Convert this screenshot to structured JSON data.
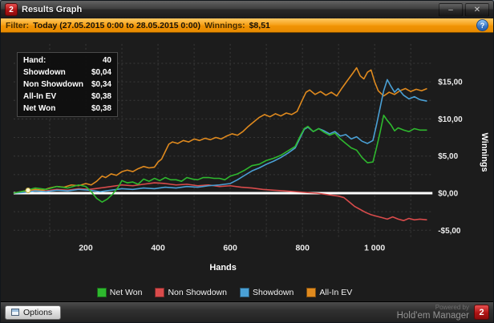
{
  "window": {
    "title": "Results Graph",
    "logo": "2",
    "minimize_glyph": "–",
    "close_glyph": "✕"
  },
  "filter_bar": {
    "filter_label": "Filter:",
    "filter_value": "Today (27.05.2015 0:00 to 28.05.2015 0:00)",
    "winnings_label": "Winnings:",
    "winnings_value": "$8,51",
    "help_glyph": "?"
  },
  "tooltip": {
    "rows": [
      {
        "label": "Hand:",
        "value": "40"
      },
      {
        "label": "Showdown",
        "value": "$0,04"
      },
      {
        "label": "Non Showdown",
        "value": "$0,34"
      },
      {
        "label": "All-In EV",
        "value": "$0,38"
      },
      {
        "label": "Net Won",
        "value": "$0,38"
      }
    ]
  },
  "chart_data": {
    "type": "line",
    "title": "",
    "xlabel": "Hands",
    "ylabel": "Winnings",
    "xlim": [
      0,
      1160
    ],
    "ylim": [
      -6.1,
      20.1
    ],
    "legend_position": "bottom",
    "grid": {
      "h_values": [
        -5,
        -2.5,
        0,
        2.5,
        5,
        7.5,
        10,
        12.5,
        15,
        17.5
      ],
      "v_values": [
        100,
        200,
        300,
        400,
        500,
        600,
        700,
        800,
        900,
        1000,
        1100
      ]
    },
    "x_ticks": [
      {
        "value": 200,
        "label": "200"
      },
      {
        "value": 400,
        "label": "400"
      },
      {
        "value": 600,
        "label": "600"
      },
      {
        "value": 800,
        "label": "800"
      },
      {
        "value": 1000,
        "label": "1 000"
      }
    ],
    "y_ticks": [
      {
        "value": 15,
        "label": "$15,00"
      },
      {
        "value": 10,
        "label": "$10,00"
      },
      {
        "value": 5,
        "label": "$5,00"
      },
      {
        "value": 0,
        "label": "$0,00"
      },
      {
        "value": -5,
        "label": "-$5,00"
      }
    ],
    "zero_line_color": "#ffffff",
    "marker": {
      "hand": 40,
      "value": 0.38
    },
    "series": [
      {
        "name": "Net Won",
        "color": "#2eb82e",
        "points": [
          [
            0,
            0
          ],
          [
            30,
            0.3
          ],
          [
            60,
            0.7
          ],
          [
            90,
            0.5
          ],
          [
            120,
            0.9
          ],
          [
            150,
            0.7
          ],
          [
            180,
            1.1
          ],
          [
            200,
            0.9
          ],
          [
            215,
            0.2
          ],
          [
            230,
            -0.7
          ],
          [
            245,
            -1.2
          ],
          [
            260,
            -0.8
          ],
          [
            275,
            -0.1
          ],
          [
            290,
            0.8
          ],
          [
            300,
            1.7
          ],
          [
            315,
            1.4
          ],
          [
            330,
            1.5
          ],
          [
            345,
            1.2
          ],
          [
            360,
            1.9
          ],
          [
            375,
            1.6
          ],
          [
            390,
            2.0
          ],
          [
            405,
            1.7
          ],
          [
            420,
            2.1
          ],
          [
            435,
            1.8
          ],
          [
            450,
            1.8
          ],
          [
            465,
            1.6
          ],
          [
            480,
            2.1
          ],
          [
            495,
            1.9
          ],
          [
            510,
            1.8
          ],
          [
            525,
            2.1
          ],
          [
            540,
            2.1
          ],
          [
            555,
            2.0
          ],
          [
            570,
            2.0
          ],
          [
            585,
            1.8
          ],
          [
            600,
            2.3
          ],
          [
            620,
            2.6
          ],
          [
            640,
            3.1
          ],
          [
            660,
            3.7
          ],
          [
            680,
            3.9
          ],
          [
            700,
            4.4
          ],
          [
            720,
            4.7
          ],
          [
            740,
            5.1
          ],
          [
            760,
            5.7
          ],
          [
            780,
            6.3
          ],
          [
            795,
            7.8
          ],
          [
            805,
            8.7
          ],
          [
            815,
            9.0
          ],
          [
            830,
            8.3
          ],
          [
            845,
            8.7
          ],
          [
            860,
            8.2
          ],
          [
            875,
            7.8
          ],
          [
            890,
            8.1
          ],
          [
            905,
            7.3
          ],
          [
            920,
            6.7
          ],
          [
            935,
            6.1
          ],
          [
            950,
            5.8
          ],
          [
            965,
            4.8
          ],
          [
            980,
            4.1
          ],
          [
            995,
            4.2
          ],
          [
            1005,
            6.1
          ],
          [
            1015,
            8.2
          ],
          [
            1025,
            10.5
          ],
          [
            1035,
            9.8
          ],
          [
            1045,
            9.2
          ],
          [
            1055,
            8.4
          ],
          [
            1065,
            8.8
          ],
          [
            1080,
            8.5
          ],
          [
            1095,
            8.3
          ],
          [
            1110,
            8.7
          ],
          [
            1125,
            8.5
          ],
          [
            1145,
            8.5
          ]
        ]
      },
      {
        "name": "Non Showdown",
        "color": "#d94b4b",
        "points": [
          [
            0,
            0
          ],
          [
            30,
            0.2
          ],
          [
            60,
            0.4
          ],
          [
            90,
            0.3
          ],
          [
            120,
            0.5
          ],
          [
            150,
            0.4
          ],
          [
            180,
            0.6
          ],
          [
            210,
            0.5
          ],
          [
            240,
            0.7
          ],
          [
            270,
            0.9
          ],
          [
            300,
            1.1
          ],
          [
            330,
            1.0
          ],
          [
            360,
            1.2
          ],
          [
            390,
            1.4
          ],
          [
            420,
            1.3
          ],
          [
            450,
            1.1
          ],
          [
            480,
            1.2
          ],
          [
            510,
            1.0
          ],
          [
            540,
            1.1
          ],
          [
            570,
            0.9
          ],
          [
            600,
            1.0
          ],
          [
            630,
            0.8
          ],
          [
            660,
            0.7
          ],
          [
            690,
            0.5
          ],
          [
            720,
            0.4
          ],
          [
            750,
            0.3
          ],
          [
            780,
            0.2
          ],
          [
            810,
            0.1
          ],
          [
            840,
            0.0
          ],
          [
            870,
            -0.2
          ],
          [
            900,
            -0.4
          ],
          [
            915,
            -0.6
          ],
          [
            930,
            -1.2
          ],
          [
            945,
            -1.8
          ],
          [
            960,
            -2.2
          ],
          [
            975,
            -2.6
          ],
          [
            990,
            -2.9
          ],
          [
            1005,
            -3.1
          ],
          [
            1020,
            -3.3
          ],
          [
            1035,
            -3.5
          ],
          [
            1050,
            -3.2
          ],
          [
            1065,
            -3.5
          ],
          [
            1080,
            -3.7
          ],
          [
            1095,
            -3.4
          ],
          [
            1110,
            -3.6
          ],
          [
            1125,
            -3.5
          ],
          [
            1145,
            -3.6
          ]
        ]
      },
      {
        "name": "Showdown",
        "color": "#4aa0d5",
        "points": [
          [
            0,
            0
          ],
          [
            30,
            0.1
          ],
          [
            60,
            0.3
          ],
          [
            90,
            0.2
          ],
          [
            120,
            0.4
          ],
          [
            150,
            0.3
          ],
          [
            180,
            0.5
          ],
          [
            210,
            0.4
          ],
          [
            240,
            0.2
          ],
          [
            270,
            0.4
          ],
          [
            300,
            0.6
          ],
          [
            330,
            0.5
          ],
          [
            360,
            0.7
          ],
          [
            390,
            0.6
          ],
          [
            420,
            0.8
          ],
          [
            450,
            0.7
          ],
          [
            480,
            0.9
          ],
          [
            510,
            0.8
          ],
          [
            540,
            1.0
          ],
          [
            570,
            1.1
          ],
          [
            600,
            1.3
          ],
          [
            620,
            1.8
          ],
          [
            640,
            2.4
          ],
          [
            660,
            3.0
          ],
          [
            680,
            3.4
          ],
          [
            700,
            3.9
          ],
          [
            720,
            4.3
          ],
          [
            740,
            4.8
          ],
          [
            760,
            5.4
          ],
          [
            780,
            6.1
          ],
          [
            795,
            7.6
          ],
          [
            805,
            8.6
          ],
          [
            815,
            8.9
          ],
          [
            830,
            8.3
          ],
          [
            845,
            8.7
          ],
          [
            860,
            8.4
          ],
          [
            875,
            8.0
          ],
          [
            890,
            8.3
          ],
          [
            905,
            7.7
          ],
          [
            920,
            7.9
          ],
          [
            935,
            7.3
          ],
          [
            950,
            7.6
          ],
          [
            965,
            7.0
          ],
          [
            980,
            6.7
          ],
          [
            995,
            7.1
          ],
          [
            1005,
            9.2
          ],
          [
            1015,
            11.5
          ],
          [
            1025,
            13.8
          ],
          [
            1035,
            15.3
          ],
          [
            1045,
            14.4
          ],
          [
            1055,
            13.6
          ],
          [
            1065,
            14.1
          ],
          [
            1080,
            13.2
          ],
          [
            1095,
            12.7
          ],
          [
            1110,
            13.0
          ],
          [
            1125,
            12.6
          ],
          [
            1145,
            12.4
          ]
        ]
      },
      {
        "name": "All-In EV",
        "color": "#e08a1e",
        "points": [
          [
            0,
            0
          ],
          [
            20,
            0.2
          ],
          [
            40,
            0.38
          ],
          [
            60,
            0.5
          ],
          [
            80,
            0.4
          ],
          [
            100,
            0.7
          ],
          [
            120,
            0.9
          ],
          [
            140,
            0.8
          ],
          [
            160,
            1.1
          ],
          [
            180,
            1.0
          ],
          [
            200,
            1.3
          ],
          [
            215,
            1.1
          ],
          [
            230,
            1.6
          ],
          [
            245,
            2.3
          ],
          [
            255,
            2.1
          ],
          [
            270,
            2.6
          ],
          [
            285,
            2.4
          ],
          [
            300,
            2.9
          ],
          [
            315,
            3.1
          ],
          [
            330,
            2.9
          ],
          [
            345,
            3.3
          ],
          [
            360,
            3.6
          ],
          [
            375,
            3.4
          ],
          [
            390,
            3.5
          ],
          [
            400,
            4.2
          ],
          [
            410,
            4.6
          ],
          [
            420,
            5.6
          ],
          [
            430,
            6.6
          ],
          [
            440,
            6.9
          ],
          [
            455,
            6.7
          ],
          [
            470,
            7.1
          ],
          [
            485,
            6.9
          ],
          [
            500,
            7.3
          ],
          [
            515,
            7.1
          ],
          [
            530,
            7.4
          ],
          [
            545,
            7.2
          ],
          [
            560,
            7.5
          ],
          [
            575,
            7.3
          ],
          [
            590,
            7.7
          ],
          [
            605,
            8.0
          ],
          [
            620,
            7.8
          ],
          [
            635,
            8.3
          ],
          [
            650,
            9.0
          ],
          [
            665,
            9.6
          ],
          [
            680,
            10.2
          ],
          [
            695,
            10.6
          ],
          [
            710,
            10.3
          ],
          [
            725,
            10.7
          ],
          [
            740,
            10.4
          ],
          [
            755,
            10.8
          ],
          [
            770,
            10.6
          ],
          [
            785,
            11.0
          ],
          [
            800,
            12.6
          ],
          [
            810,
            13.6
          ],
          [
            820,
            13.9
          ],
          [
            835,
            13.3
          ],
          [
            850,
            13.7
          ],
          [
            865,
            13.2
          ],
          [
            880,
            13.6
          ],
          [
            895,
            13.1
          ],
          [
            910,
            14.2
          ],
          [
            925,
            15.2
          ],
          [
            940,
            16.2
          ],
          [
            950,
            16.9
          ],
          [
            960,
            15.8
          ],
          [
            970,
            15.4
          ],
          [
            980,
            16.3
          ],
          [
            990,
            16.6
          ],
          [
            1000,
            15.0
          ],
          [
            1010,
            13.8
          ],
          [
            1025,
            13.1
          ],
          [
            1040,
            13.6
          ],
          [
            1055,
            13.3
          ],
          [
            1070,
            13.8
          ],
          [
            1085,
            14.1
          ],
          [
            1100,
            13.7
          ],
          [
            1115,
            14.0
          ],
          [
            1130,
            13.8
          ],
          [
            1145,
            14.1
          ]
        ]
      }
    ]
  },
  "footer": {
    "options_label": "Options",
    "powered_by": "Powered by",
    "brand": "Hold'em Manager",
    "brand_logo": "2"
  },
  "colors": {
    "net_won": "#2eb82e",
    "non_showdown": "#d94b4b",
    "showdown": "#4aa0d5",
    "all_in_ev": "#e08a1e",
    "filter_bar_accent": "#f09404",
    "zero_line": "#ffffff"
  }
}
